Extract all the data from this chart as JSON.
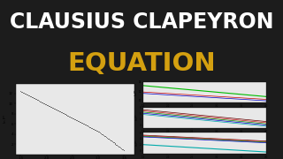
{
  "bg_color": "#1c1c1c",
  "title_line1": "CLAUSIUS CLAPEYRON",
  "title_line2": "EQUATION",
  "title_color1": "#ffffff",
  "title_color2": "#d4a010",
  "title_fontsize1": 17,
  "title_fontsize2": 21,
  "left_plot": {
    "x": [
      1.5,
      2.0,
      2.5,
      3.0,
      3.5
    ],
    "y": [
      12.5,
      9.8,
      7.2,
      4.5,
      0.8
    ],
    "dot_color": "#222222",
    "xlabel": "1000/T [1/K]",
    "ylabel": "ln P*",
    "bg": "#e8e8e8",
    "ylim": [
      0,
      14
    ],
    "xlim": [
      1.4,
      3.7
    ],
    "yticks": [
      2,
      4,
      6,
      8,
      10,
      12
    ],
    "xticks": [
      1.5,
      2.0,
      2.5,
      3.0,
      3.5
    ]
  },
  "right_top": {
    "lines": [
      {
        "x": [
          1.5,
          4.0
        ],
        "y": [
          13.2,
          10.8
        ],
        "color": "#00bb00",
        "lw": 0.8
      },
      {
        "x": [
          1.5,
          4.0
        ],
        "y": [
          11.8,
          10.2
        ],
        "color": "#cc0000",
        "lw": 0.5
      },
      {
        "x": [
          1.5,
          4.0
        ],
        "y": [
          11.5,
          9.9
        ],
        "color": "#0000cc",
        "lw": 0.5
      }
    ],
    "xlabel": "1000/T [1/K]",
    "ylabel": "ln P*",
    "bg": "#e8e8e8",
    "ylim": [
      9.5,
      14
    ],
    "xlim": [
      1.5,
      4.0
    ]
  },
  "right_mid": {
    "lines": [
      {
        "x": [
          1.5,
          4.0
        ],
        "y": [
          5.6,
          3.6
        ],
        "color": "#660000",
        "lw": 0.5
      },
      {
        "x": [
          1.5,
          4.0
        ],
        "y": [
          5.4,
          3.4
        ],
        "color": "#cc2222",
        "lw": 0.5
      },
      {
        "x": [
          1.5,
          4.0
        ],
        "y": [
          5.2,
          3.2
        ],
        "color": "#008800",
        "lw": 0.5
      },
      {
        "x": [
          1.5,
          4.0
        ],
        "y": [
          5.0,
          3.0
        ],
        "color": "#0000cc",
        "lw": 0.5
      },
      {
        "x": [
          1.5,
          4.0
        ],
        "y": [
          4.8,
          2.8
        ],
        "color": "#00aaaa",
        "lw": 0.5
      }
    ],
    "xlabel": "1000/T [1/K]",
    "ylabel": "ln P*",
    "bg": "#e8e8e8",
    "ylim": [
      2.5,
      6.0
    ],
    "xlim": [
      1.5,
      4.0
    ]
  },
  "right_bot": {
    "lines": [
      {
        "x": [
          1.5,
          4.0
        ],
        "y": [
          5.2,
          3.2
        ],
        "color": "#660000",
        "lw": 0.5
      },
      {
        "x": [
          1.5,
          4.0
        ],
        "y": [
          5.0,
          3.0
        ],
        "color": "#cc2222",
        "lw": 0.5
      },
      {
        "x": [
          1.5,
          4.0
        ],
        "y": [
          4.8,
          2.8
        ],
        "color": "#008800",
        "lw": 0.5
      },
      {
        "x": [
          1.5,
          4.0
        ],
        "y": [
          4.6,
          2.6
        ],
        "color": "#0000cc",
        "lw": 0.5
      },
      {
        "x": [
          1.5,
          4.0
        ],
        "y": [
          2.0,
          -0.5
        ],
        "color": "#00aaaa",
        "lw": 0.8
      }
    ],
    "xlabel": "1000/T [1/K]",
    "ylabel": "ln P*",
    "bg": "#e8e8e8",
    "ylim": [
      -1.0,
      6.0
    ],
    "xlim": [
      1.5,
      4.0
    ]
  }
}
